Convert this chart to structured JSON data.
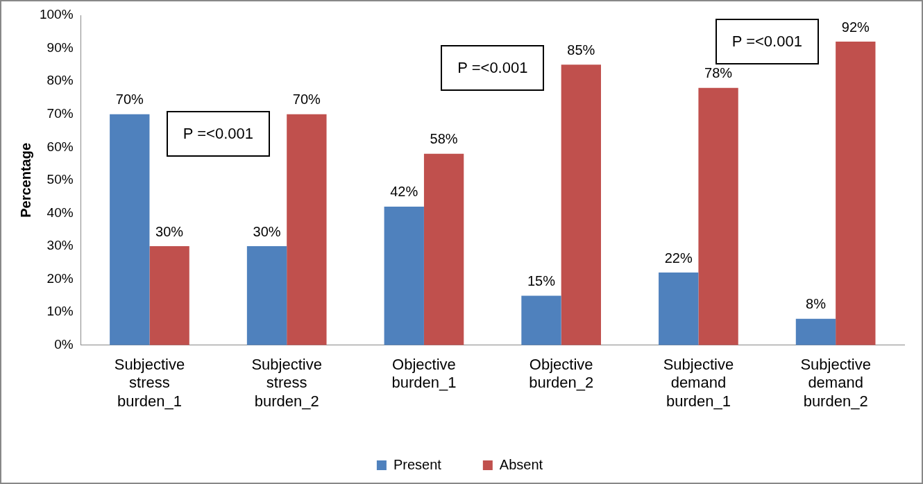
{
  "chart_data": {
    "type": "bar",
    "ylabel": "Percentage",
    "categories": [
      "Subjective stress burden_1",
      "Subjective stress burden_2",
      "Objective burden_1",
      "Objective burden_2",
      "Subjective demand burden_1",
      "Subjective demand burden_2"
    ],
    "series": [
      {
        "name": "Present",
        "color": "#4f81bd",
        "values": [
          70,
          30,
          42,
          15,
          22,
          8
        ],
        "value_labels": [
          "70%",
          "30%",
          "42%",
          "15%",
          "22%",
          "8%"
        ]
      },
      {
        "name": "Absent",
        "color": "#c0504d",
        "values": [
          30,
          70,
          58,
          85,
          78,
          92
        ],
        "value_labels": [
          "30%",
          "70%",
          "58%",
          "85%",
          "78%",
          "92%"
        ]
      }
    ],
    "ylim": [
      0,
      100
    ],
    "yticks": [
      {
        "value": 0,
        "label": "0%"
      },
      {
        "value": 10,
        "label": "10%"
      },
      {
        "value": 20,
        "label": "20%"
      },
      {
        "value": 30,
        "label": "30%"
      },
      {
        "value": 40,
        "label": "40%"
      },
      {
        "value": 50,
        "label": "50%"
      },
      {
        "value": 60,
        "label": "60%"
      },
      {
        "value": 70,
        "label": "70%"
      },
      {
        "value": 80,
        "label": "80%"
      },
      {
        "value": 90,
        "label": "90%"
      },
      {
        "value": 100,
        "label": "100%"
      }
    ],
    "annotations": [
      "P =<0.001",
      "P =<0.001",
      "P =<0.001"
    ],
    "grid": false,
    "legend": "bottom"
  }
}
